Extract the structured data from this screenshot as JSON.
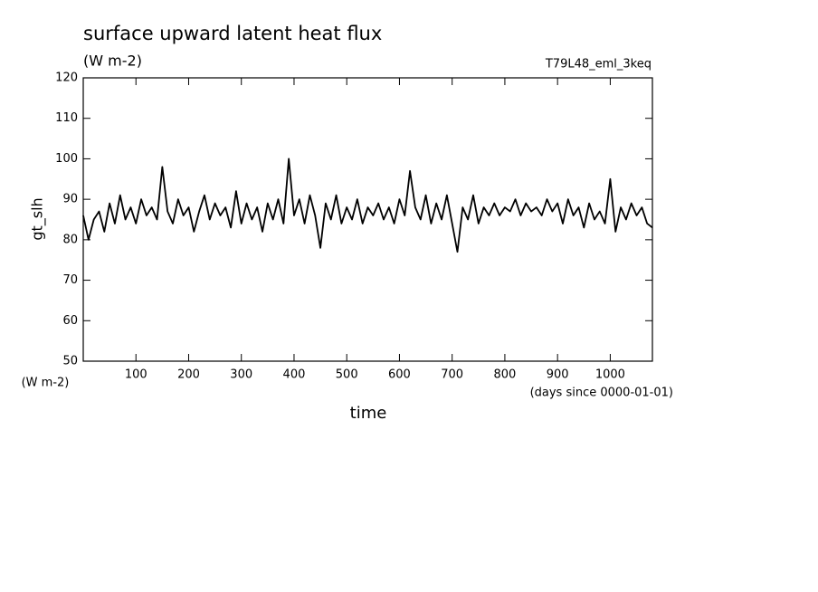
{
  "chart_data": {
    "type": "line",
    "title": "surface upward latent heat flux",
    "subtitle": "(W m-2)",
    "run_name": "T79L48_eml_3keq",
    "ylabel": "gt_slh",
    "y_units": "(W m-2)",
    "xlabel": "time",
    "x_units": "(days since 0000-01-01)",
    "x": [
      0,
      10,
      20,
      30,
      40,
      50,
      60,
      70,
      80,
      90,
      100,
      110,
      120,
      130,
      140,
      150,
      160,
      170,
      180,
      190,
      200,
      210,
      220,
      230,
      240,
      250,
      260,
      270,
      280,
      290,
      300,
      310,
      320,
      330,
      340,
      350,
      360,
      370,
      380,
      390,
      400,
      410,
      420,
      430,
      440,
      450,
      460,
      470,
      480,
      490,
      500,
      510,
      520,
      530,
      540,
      550,
      560,
      570,
      580,
      590,
      600,
      610,
      620,
      630,
      640,
      650,
      660,
      670,
      680,
      690,
      700,
      710,
      720,
      730,
      740,
      750,
      760,
      770,
      780,
      790,
      800,
      810,
      820,
      830,
      840,
      850,
      860,
      870,
      880,
      890,
      900,
      910,
      920,
      930,
      940,
      950,
      960,
      970,
      980,
      990,
      1000,
      1010,
      1020,
      1030,
      1040,
      1050,
      1060,
      1070,
      1080
    ],
    "series": [
      {
        "color": "#000000",
        "values": [
          86,
          80,
          85,
          87,
          82,
          89,
          84,
          91,
          85,
          88,
          84,
          90,
          86,
          88,
          85,
          98,
          87,
          84,
          90,
          86,
          88,
          82,
          87,
          91,
          85,
          89,
          86,
          88,
          83,
          92,
          84,
          89,
          85,
          88,
          82,
          89,
          85,
          90,
          84,
          100,
          86,
          90,
          84,
          91,
          86,
          78,
          89,
          85,
          91,
          84,
          88,
          85,
          90,
          84,
          88,
          86,
          89,
          85,
          88,
          84,
          90,
          86,
          97,
          88,
          85,
          91,
          84,
          89,
          85,
          91,
          84,
          77,
          88,
          85,
          91,
          84,
          88,
          86,
          89,
          86,
          88,
          87,
          90,
          86,
          89,
          87,
          88,
          86,
          90,
          87,
          89,
          84,
          90,
          86,
          88,
          83,
          89,
          85,
          87,
          84,
          95,
          82,
          88,
          85,
          89,
          86,
          88,
          84,
          83
        ]
      }
    ],
    "xlim": [
      0,
      1080
    ],
    "ylim": [
      50,
      120
    ],
    "xticks": [
      100,
      200,
      300,
      400,
      500,
      600,
      700,
      800,
      900,
      1000
    ],
    "yticks": [
      50,
      60,
      70,
      80,
      90,
      100,
      110,
      120
    ]
  }
}
